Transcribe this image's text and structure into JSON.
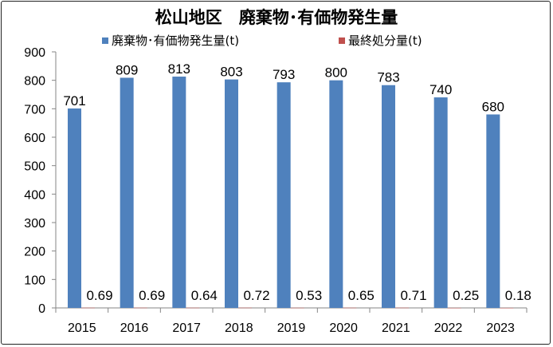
{
  "chart_data": {
    "type": "bar",
    "title": "松山地区　廃棄物･有価物発生量",
    "categories": [
      "2015",
      "2016",
      "2017",
      "2018",
      "2019",
      "2020",
      "2021",
      "2022",
      "2023"
    ],
    "series": [
      {
        "name": "廃棄物･有価物発生量(t)",
        "color": "#4f81bd",
        "values": [
          701,
          809,
          813,
          803,
          793,
          800,
          783,
          740,
          680
        ]
      },
      {
        "name": "最終処分量(t)",
        "color": "#c0504d",
        "values": [
          0.69,
          0.69,
          0.64,
          0.72,
          0.53,
          0.65,
          0.71,
          0.25,
          0.18
        ]
      }
    ],
    "ylim": [
      0,
      900
    ],
    "yticks": [
      0,
      100,
      200,
      300,
      400,
      500,
      600,
      700,
      800,
      900
    ],
    "data_labels": {
      "main": [
        "701",
        "809",
        "813",
        "803",
        "793",
        "800",
        "783",
        "740",
        "680"
      ],
      "disposal": [
        "0.69",
        "0.69",
        "0.64",
        "0.72",
        "0.53",
        "0.65",
        "0.71",
        "0.25",
        "0.18"
      ]
    },
    "grid": false,
    "legend": "top"
  }
}
